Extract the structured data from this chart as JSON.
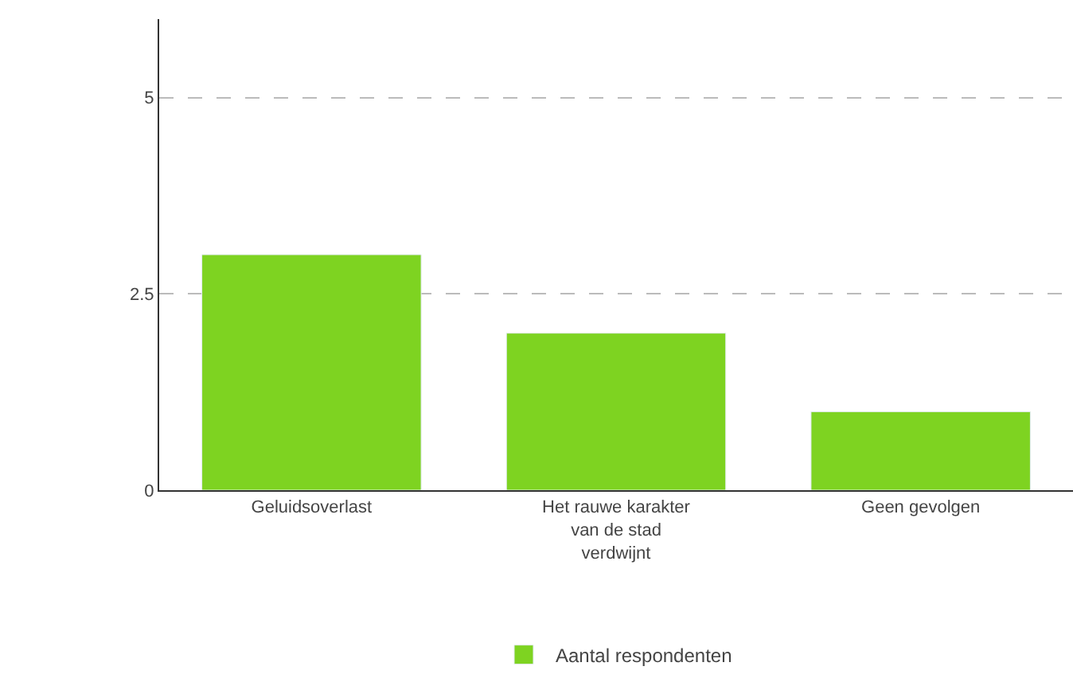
{
  "chart_data": {
    "type": "bar",
    "categories": [
      "Geluidsoverlast",
      "Het rauwe karakter van de stad verdwijnt",
      "Geen gevolgen"
    ],
    "series": [
      {
        "name": "Aantal respondenten",
        "color": "#7ed321",
        "values": [
          3,
          2,
          1
        ]
      }
    ],
    "ylim": [
      0,
      6
    ],
    "yticks": [
      0,
      2.5,
      5
    ],
    "grid": "y",
    "legend": "bottom"
  }
}
